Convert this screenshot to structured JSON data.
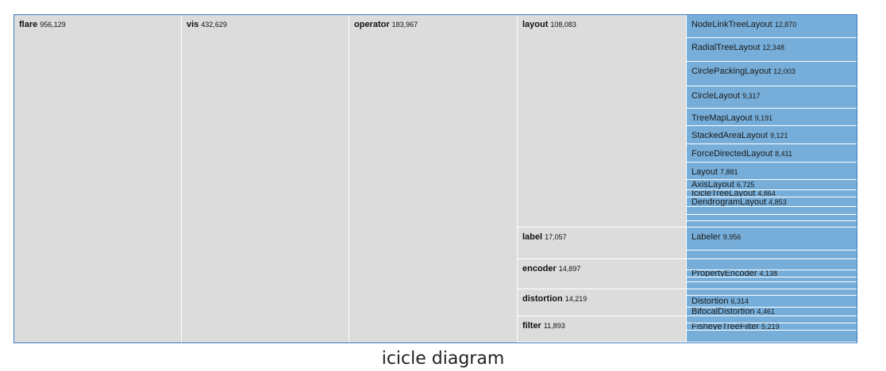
{
  "caption": "icicle diagram",
  "columns": [
    {
      "name": "flare",
      "value": "956,129"
    },
    {
      "name": "vis",
      "value": "432,629"
    },
    {
      "name": "operator",
      "value": "183,967"
    }
  ],
  "groups": [
    {
      "name": "layout",
      "value": "108,083"
    },
    {
      "name": "label",
      "value": "17,057"
    },
    {
      "name": "encoder",
      "value": "14,897"
    },
    {
      "name": "distortion",
      "value": "14,219"
    },
    {
      "name": "filter",
      "value": "11,893"
    }
  ],
  "leaves": [
    {
      "name": "NodeLinkTreeLayout",
      "value": "12,870",
      "group": "layout"
    },
    {
      "name": "RadialTreeLayout",
      "value": "12,348",
      "group": "layout"
    },
    {
      "name": "CirclePackingLayout",
      "value": "12,003",
      "group": "layout"
    },
    {
      "name": "CircleLayout",
      "value": "9,317",
      "group": "layout"
    },
    {
      "name": "TreeMapLayout",
      "value": "9,191",
      "group": "layout"
    },
    {
      "name": "StackedAreaLayout",
      "value": "9,121",
      "group": "layout"
    },
    {
      "name": "ForceDirectedLayout",
      "value": "8,411",
      "group": "layout"
    },
    {
      "name": "Layout",
      "value": "7,881",
      "group": "layout"
    },
    {
      "name": "AxisLayout",
      "value": "6,725",
      "group": "layout"
    },
    {
      "name": "IcicleTreeLayout",
      "value": "4,864",
      "group": "layout"
    },
    {
      "name": "DendrogramLayout",
      "value": "4,853",
      "group": "layout"
    },
    {
      "name": "",
      "value": "",
      "group": "layout"
    },
    {
      "name": "",
      "value": "",
      "group": "layout"
    },
    {
      "name": "",
      "value": "",
      "group": "layout"
    },
    {
      "name": "Labeler",
      "value": "9,956",
      "group": "label"
    },
    {
      "name": "",
      "value": "",
      "group": "label"
    },
    {
      "name": "",
      "value": "",
      "group": "label"
    },
    {
      "name": "PropertyEncoder",
      "value": "4,138",
      "group": "encoder"
    },
    {
      "name": "",
      "value": "",
      "group": "encoder"
    },
    {
      "name": "",
      "value": "",
      "group": "encoder"
    },
    {
      "name": "",
      "value": "",
      "group": "encoder"
    },
    {
      "name": "Distortion",
      "value": "6,314",
      "group": "distortion"
    },
    {
      "name": "BifocalDistortion",
      "value": "4,461",
      "group": "distortion"
    },
    {
      "name": "",
      "value": "",
      "group": "distortion"
    },
    {
      "name": "FisheyeTreeFilter",
      "value": "5,219",
      "group": "filter"
    },
    {
      "name": "",
      "value": "",
      "group": "filter"
    },
    {
      "name": "",
      "value": "",
      "group": "filter"
    }
  ],
  "colors": {
    "ancestor": "#dcdcdc",
    "leaf": "#77aed9",
    "frame": "#3a7cc4"
  }
}
